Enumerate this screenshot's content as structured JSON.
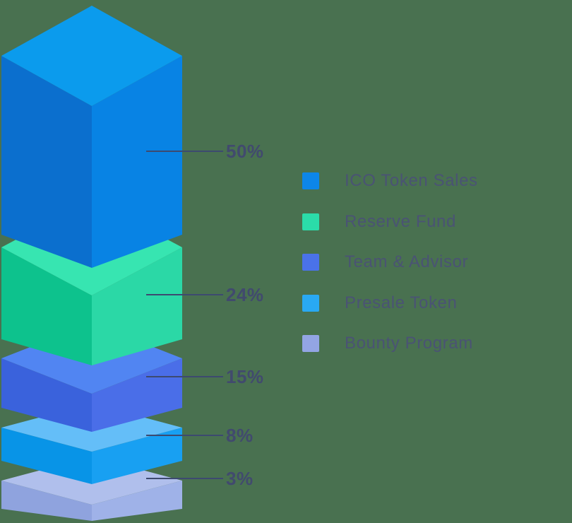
{
  "background_color": "#497150",
  "chart_data": {
    "type": "bar",
    "subtype": "isometric-3d-stacked-layers",
    "title": "",
    "orientation": "vertical-stack",
    "legend_position": "right",
    "callout_line_color": "#3D4A70",
    "percent_label_color": "#414A6E",
    "legend_text_color": "#4A5374",
    "series": [
      {
        "label": "ICO Token Sales",
        "value": 50,
        "pct_label": "50%",
        "colors": {
          "top": "#0B9BED",
          "left": "#0B6FCE",
          "right": "#0883E4",
          "legend": "#0D86E9"
        }
      },
      {
        "label": "Reserve Fund",
        "value": 24,
        "pct_label": "24%",
        "colors": {
          "top": "#37E5B1",
          "left": "#0DC28D",
          "right": "#2BD8A6",
          "legend": "#2BDCA9"
        }
      },
      {
        "label": "Team & Advisor",
        "value": 15,
        "pct_label": "15%",
        "colors": {
          "top": "#5185F2",
          "left": "#3A62DC",
          "right": "#4A6EE8",
          "legend": "#4A72E9"
        }
      },
      {
        "label": "Presale Token",
        "value": 8,
        "pct_label": "8%",
        "colors": {
          "top": "#64BEF8",
          "left": "#0894E7",
          "right": "#18A0F2",
          "legend": "#29A9F3"
        }
      },
      {
        "label": "Bounty Program",
        "value": 3,
        "pct_label": "3%",
        "colors": {
          "top": "#B0BFEC",
          "left": "#8FA3DE",
          "right": "#9FB2E8",
          "legend": "#93A5E4"
        }
      }
    ]
  }
}
